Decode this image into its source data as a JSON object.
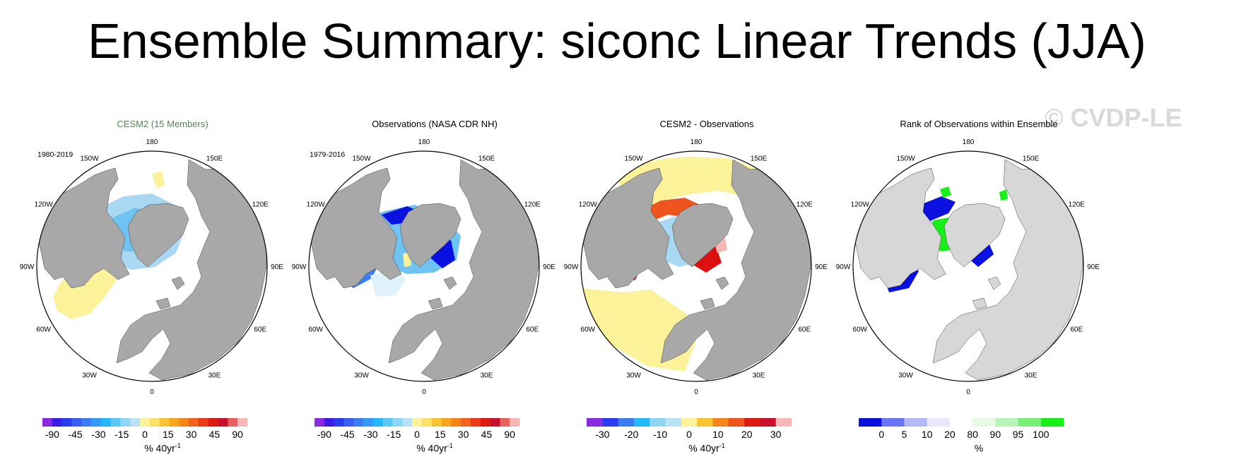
{
  "title": "Ensemble Summary: siconc Linear Trends (JJA)",
  "watermark": "© CVDP-LE",
  "colors": {
    "land": "#a8a8a8",
    "light_land": "#d7d7d7",
    "ice_blue": "#a9d8f2",
    "pale_yellow": "#fbf29a",
    "deep_blue": "#0a10e0",
    "bright_green": "#18ef18",
    "orange_red": "#f0541e",
    "red": "#dc1010",
    "pink": "#f7b7b7"
  },
  "lon_labels": [
    "180",
    "150W",
    "150E",
    "120W",
    "120E",
    "90W",
    "90E",
    "60W",
    "60E",
    "30W",
    "30E",
    "0"
  ],
  "panels": [
    {
      "title": "CESM2 (15 Members)",
      "period": "1980-2019",
      "units_text": "% 40yr",
      "units_sup": "-1",
      "colorbar": {
        "colors": [
          "#8a2be2",
          "#3a1ee8",
          "#2b3cf0",
          "#3a5ef0",
          "#3b7df3",
          "#3799f7",
          "#22b8fb",
          "#5cc8f6",
          "#8fd5f4",
          "#b8e3f6",
          "#fbf29a",
          "#fbe06a",
          "#f9c432",
          "#f7a51a",
          "#f5851a",
          "#f0641c",
          "#ea3a1a",
          "#dd1a12",
          "#c8102d",
          "#e5605e",
          "#f7b7b7"
        ],
        "labels": [
          "-90",
          "-45",
          "-30",
          "-15",
          "0",
          "15",
          "30",
          "45",
          "90"
        ]
      }
    },
    {
      "title": "Observations (NASA CDR NH)",
      "period": "1979-2016",
      "units_text": "% 40yr",
      "units_sup": "-1",
      "colorbar": {
        "colors": [
          "#8a2be2",
          "#3a1ee8",
          "#2b3cf0",
          "#3a5ef0",
          "#3b7df3",
          "#3799f7",
          "#22b8fb",
          "#5cc8f6",
          "#8fd5f4",
          "#b8e3f6",
          "#fbf29a",
          "#fbe06a",
          "#f9c432",
          "#f7a51a",
          "#f5851a",
          "#f0641c",
          "#ea3a1a",
          "#dd1a12",
          "#c8102d",
          "#e5605e",
          "#f7b7b7"
        ],
        "labels": [
          "-90",
          "-45",
          "-30",
          "-15",
          "0",
          "15",
          "30",
          "45",
          "90"
        ]
      }
    },
    {
      "title": "CESM2 - Observations",
      "period": "",
      "units_text": "% 40yr",
      "units_sup": "-1",
      "colorbar": {
        "colors": [
          "#8a2be2",
          "#2b3cf0",
          "#3b7df3",
          "#22b8fb",
          "#8fd5f4",
          "#b8e3f6",
          "#fbf29a",
          "#f9c432",
          "#f5851a",
          "#f0541e",
          "#dd1a12",
          "#c8102d",
          "#f7b7b7"
        ],
        "labels": [
          "-30",
          "-20",
          "-10",
          "0",
          "10",
          "20",
          "30"
        ]
      }
    },
    {
      "title": "Rank of Observations within Ensemble",
      "period": "",
      "units_text": "%",
      "units_sup": "",
      "colorbar": {
        "colors": [
          "#0a10e0",
          "#6b74f6",
          "#b4b8f6",
          "#e7e9fb",
          "#ffffff",
          "#e6fae6",
          "#b8f5b8",
          "#78f078",
          "#18ef18"
        ],
        "labels": [
          "0",
          "5",
          "10",
          "20",
          "80",
          "90",
          "95",
          "100"
        ]
      }
    }
  ]
}
